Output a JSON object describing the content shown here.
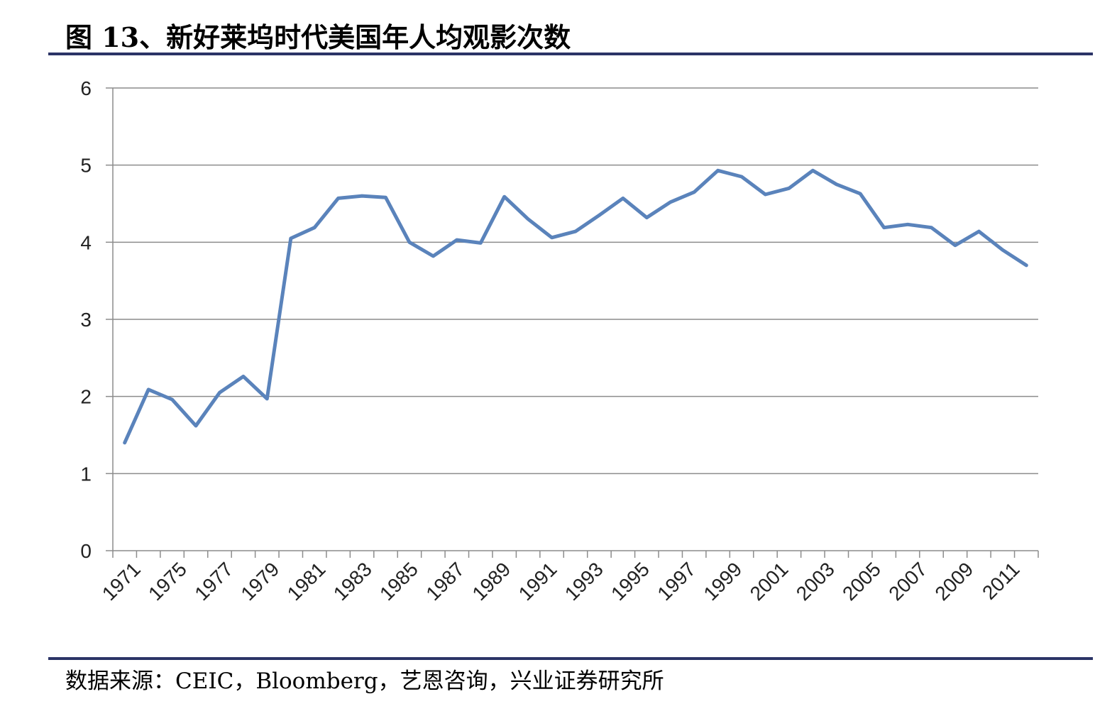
{
  "figure": {
    "title": "图 13、新好莱坞时代美国年人均观影次数",
    "source": "数据来源：CEIC，Bloomberg，艺恩咨询，兴业证券研究所"
  },
  "colors": {
    "line": "#5a83bb",
    "grid": "#8c8c8c",
    "rule": "#2b3466"
  },
  "chart_data": {
    "type": "line",
    "title": "",
    "xlabel": "",
    "ylabel": "",
    "ylim": [
      0,
      6
    ],
    "yticks": [
      "0",
      "1",
      "2",
      "3",
      "4",
      "5",
      "6"
    ],
    "xtick_labels": [
      "1971",
      "1975",
      "1977",
      "1979",
      "1981",
      "1983",
      "1985",
      "1987",
      "1989",
      "1991",
      "1993",
      "1995",
      "1997",
      "1999",
      "2001",
      "2003",
      "2005",
      "2007",
      "2009",
      "2011"
    ],
    "grid": true,
    "legend": "none",
    "series": [
      {
        "values": [
          1.4,
          2.09,
          1.96,
          1.62,
          2.05,
          2.26,
          1.97,
          4.05,
          4.19,
          4.57,
          4.6,
          4.58,
          4.0,
          3.82,
          4.03,
          3.99,
          4.59,
          4.3,
          4.06,
          4.14,
          4.35,
          4.57,
          4.32,
          4.52,
          4.65,
          4.93,
          4.85,
          4.62,
          4.7,
          4.93,
          4.75,
          4.63,
          4.19,
          4.23,
          4.19,
          3.96,
          4.14,
          3.9,
          3.7
        ]
      }
    ]
  }
}
